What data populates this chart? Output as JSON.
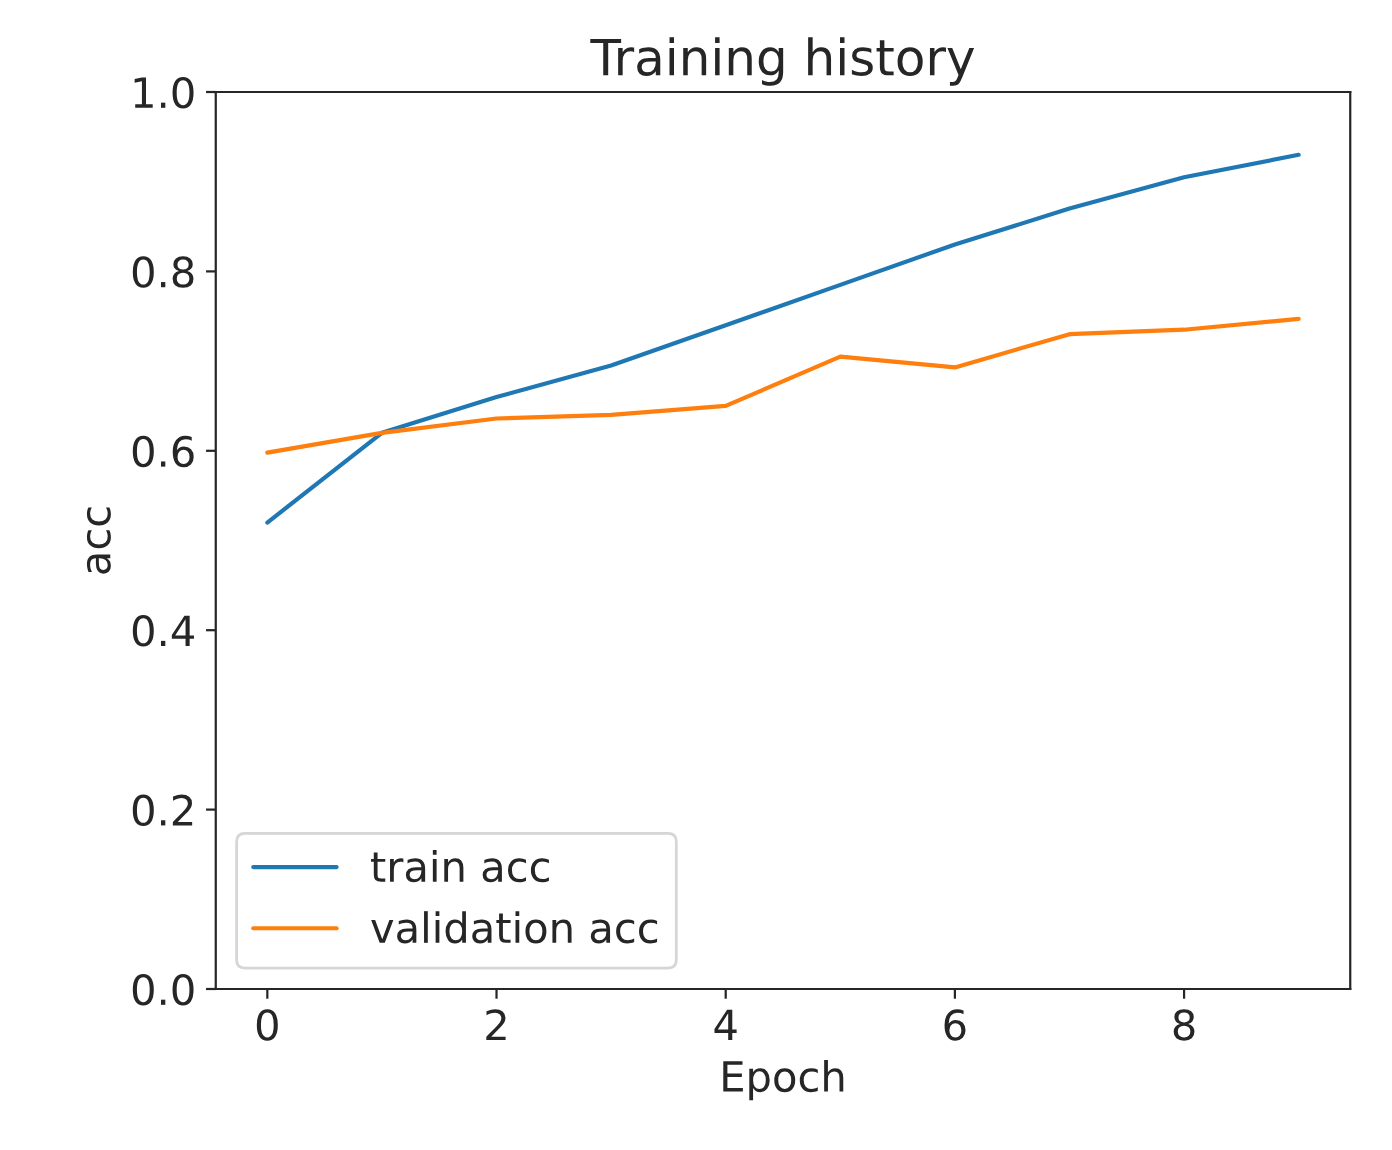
{
  "chart_data": {
    "type": "line",
    "title": "Training history",
    "xlabel": "Epoch",
    "ylabel": "acc",
    "x": [
      0,
      1,
      2,
      3,
      4,
      5,
      6,
      7,
      8,
      9
    ],
    "series": [
      {
        "name": "train acc",
        "color": "#1f77b4",
        "values": [
          0.52,
          0.62,
          0.66,
          0.695,
          0.74,
          0.785,
          0.83,
          0.87,
          0.905,
          0.93
        ]
      },
      {
        "name": "validation acc",
        "color": "#ff7f0e",
        "values": [
          0.598,
          0.62,
          0.636,
          0.64,
          0.65,
          0.705,
          0.693,
          0.73,
          0.735,
          0.747
        ]
      }
    ],
    "xlim": [
      -0.45,
      9.45
    ],
    "ylim": [
      0.0,
      1.0
    ],
    "xticks": [
      0,
      2,
      4,
      6,
      8
    ],
    "yticks": [
      {
        "value": 0,
        "label": "0.0"
      },
      {
        "value": 0.2,
        "label": "0.2"
      },
      {
        "value": 0.4,
        "label": "0.4"
      },
      {
        "value": 0.6,
        "label": "0.6"
      },
      {
        "value": 0.8,
        "label": "0.8"
      },
      {
        "value": 1,
        "label": "1.0"
      }
    ],
    "legend": "lower left",
    "grid": false
  }
}
